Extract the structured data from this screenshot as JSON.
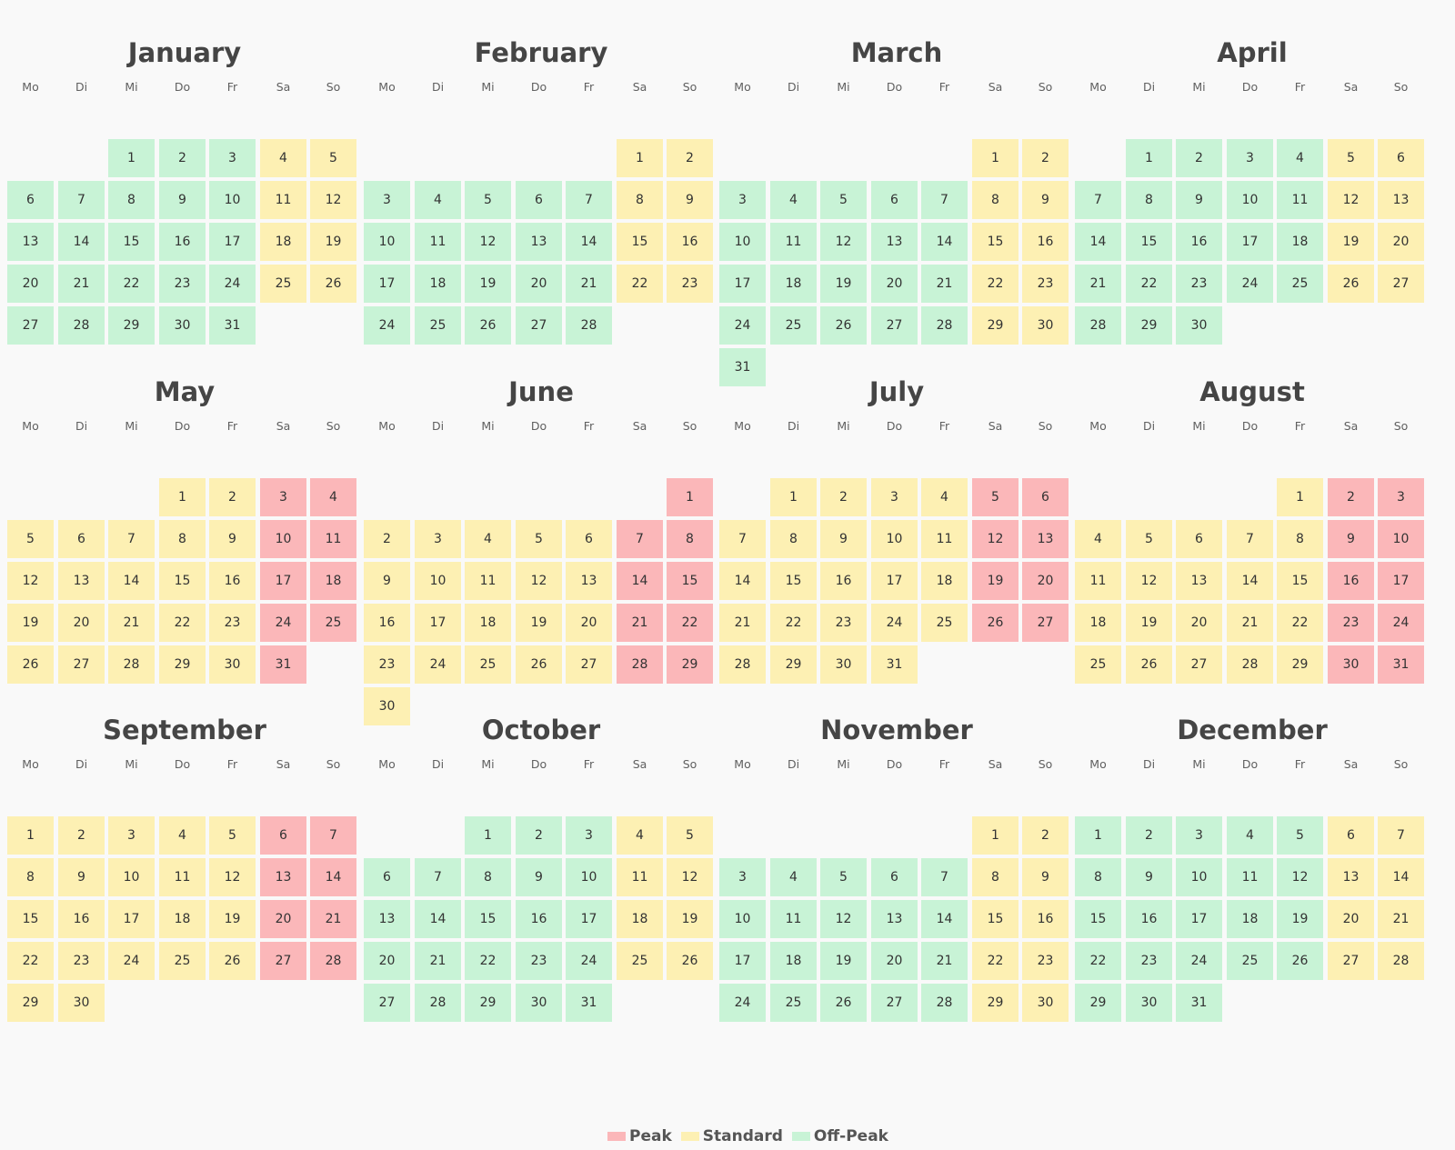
{
  "weekdays": [
    "Mo",
    "Di",
    "Mi",
    "Do",
    "Fr",
    "Sa",
    "So"
  ],
  "colors": {
    "peak": "#fbb7b9",
    "standard": "#fdf0b3",
    "offpeak": "#c8f3d6"
  },
  "legend": [
    {
      "key": "peak",
      "label": "Peak"
    },
    {
      "key": "standard",
      "label": "Standard"
    },
    {
      "key": "offpeak",
      "label": "Off-Peak"
    }
  ],
  "months": [
    {
      "name": "January",
      "start_weekday": 2,
      "days": 31,
      "tiers": [
        "O",
        "O",
        "O",
        "S",
        "S",
        "O",
        "O",
        "O",
        "O",
        "O",
        "S",
        "S",
        "O",
        "O",
        "O",
        "O",
        "O",
        "S",
        "S",
        "O",
        "O",
        "O",
        "O",
        "O",
        "S",
        "S",
        "O",
        "O",
        "O",
        "O",
        "O"
      ]
    },
    {
      "name": "February",
      "start_weekday": 5,
      "days": 28,
      "tiers": [
        "S",
        "S",
        "O",
        "O",
        "O",
        "O",
        "O",
        "S",
        "S",
        "O",
        "O",
        "O",
        "O",
        "O",
        "S",
        "S",
        "O",
        "O",
        "O",
        "O",
        "O",
        "S",
        "S",
        "O",
        "O",
        "O",
        "O",
        "O"
      ]
    },
    {
      "name": "March",
      "start_weekday": 5,
      "days": 31,
      "tiers": [
        "S",
        "S",
        "O",
        "O",
        "O",
        "O",
        "O",
        "S",
        "S",
        "O",
        "O",
        "O",
        "O",
        "O",
        "S",
        "S",
        "O",
        "O",
        "O",
        "O",
        "O",
        "S",
        "S",
        "O",
        "O",
        "O",
        "O",
        "O",
        "S",
        "S",
        "O"
      ]
    },
    {
      "name": "April",
      "start_weekday": 1,
      "days": 30,
      "tiers": [
        "O",
        "O",
        "O",
        "O",
        "S",
        "S",
        "O",
        "O",
        "O",
        "O",
        "O",
        "S",
        "S",
        "O",
        "O",
        "O",
        "O",
        "O",
        "S",
        "S",
        "O",
        "O",
        "O",
        "O",
        "O",
        "S",
        "S",
        "O",
        "O",
        "O"
      ]
    },
    {
      "name": "May",
      "start_weekday": 3,
      "days": 31,
      "tiers": [
        "S",
        "S",
        "P",
        "P",
        "S",
        "S",
        "S",
        "S",
        "S",
        "P",
        "P",
        "S",
        "S",
        "S",
        "S",
        "S",
        "P",
        "P",
        "S",
        "S",
        "S",
        "S",
        "S",
        "P",
        "P",
        "S",
        "S",
        "S",
        "S",
        "S",
        "P"
      ]
    },
    {
      "name": "June",
      "start_weekday": 6,
      "days": 30,
      "tiers": [
        "P",
        "S",
        "S",
        "S",
        "S",
        "S",
        "P",
        "P",
        "S",
        "S",
        "S",
        "S",
        "S",
        "P",
        "P",
        "S",
        "S",
        "S",
        "S",
        "S",
        "P",
        "P",
        "S",
        "S",
        "S",
        "S",
        "S",
        "P",
        "P",
        "S"
      ]
    },
    {
      "name": "July",
      "start_weekday": 1,
      "days": 31,
      "tiers": [
        "S",
        "S",
        "S",
        "S",
        "P",
        "P",
        "S",
        "S",
        "S",
        "S",
        "S",
        "P",
        "P",
        "S",
        "S",
        "S",
        "S",
        "S",
        "P",
        "P",
        "S",
        "S",
        "S",
        "S",
        "S",
        "P",
        "P",
        "S",
        "S",
        "S",
        "S"
      ]
    },
    {
      "name": "August",
      "start_weekday": 4,
      "days": 31,
      "tiers": [
        "S",
        "P",
        "P",
        "S",
        "S",
        "S",
        "S",
        "S",
        "P",
        "P",
        "S",
        "S",
        "S",
        "S",
        "S",
        "P",
        "P",
        "S",
        "S",
        "S",
        "S",
        "S",
        "P",
        "P",
        "S",
        "S",
        "S",
        "S",
        "S",
        "P",
        "P"
      ]
    },
    {
      "name": "September",
      "start_weekday": 0,
      "days": 30,
      "tiers": [
        "S",
        "S",
        "S",
        "S",
        "S",
        "P",
        "P",
        "S",
        "S",
        "S",
        "S",
        "S",
        "P",
        "P",
        "S",
        "S",
        "S",
        "S",
        "S",
        "P",
        "P",
        "S",
        "S",
        "S",
        "S",
        "S",
        "P",
        "P",
        "S",
        "S"
      ]
    },
    {
      "name": "October",
      "start_weekday": 2,
      "days": 31,
      "tiers": [
        "O",
        "O",
        "O",
        "S",
        "S",
        "O",
        "O",
        "O",
        "O",
        "O",
        "S",
        "S",
        "O",
        "O",
        "O",
        "O",
        "O",
        "S",
        "S",
        "O",
        "O",
        "O",
        "O",
        "O",
        "S",
        "S",
        "O",
        "O",
        "O",
        "O",
        "O"
      ]
    },
    {
      "name": "November",
      "start_weekday": 5,
      "days": 30,
      "tiers": [
        "S",
        "S",
        "O",
        "O",
        "O",
        "O",
        "O",
        "S",
        "S",
        "O",
        "O",
        "O",
        "O",
        "O",
        "S",
        "S",
        "O",
        "O",
        "O",
        "O",
        "O",
        "S",
        "S",
        "O",
        "O",
        "O",
        "O",
        "O",
        "S",
        "S"
      ]
    },
    {
      "name": "December",
      "start_weekday": 0,
      "days": 31,
      "tiers": [
        "O",
        "O",
        "O",
        "O",
        "O",
        "S",
        "S",
        "O",
        "O",
        "O",
        "O",
        "O",
        "S",
        "S",
        "O",
        "O",
        "O",
        "O",
        "O",
        "S",
        "S",
        "O",
        "O",
        "O",
        "O",
        "O",
        "S",
        "S",
        "O",
        "O",
        "O"
      ]
    }
  ]
}
